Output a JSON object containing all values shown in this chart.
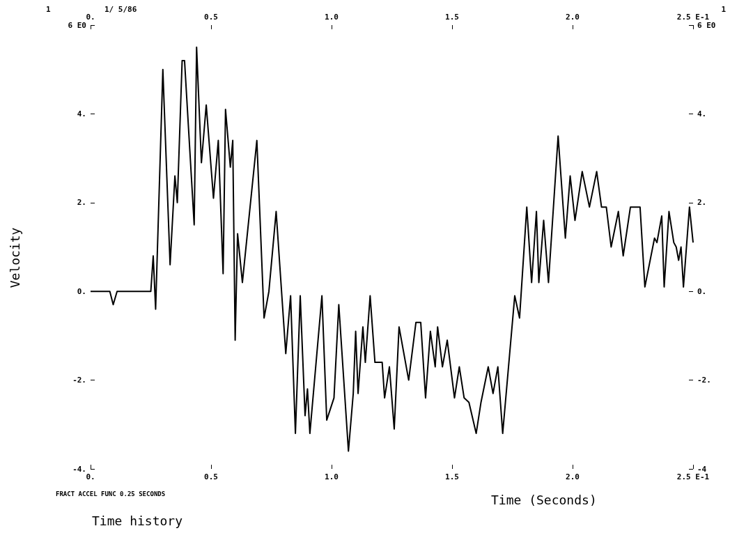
{
  "chart_data": {
    "type": "line",
    "title": "Time history",
    "xlabel": "Time (Seconds)",
    "ylabel": "Velocity",
    "annotations": [
      "1",
      "1/ 5/86",
      "1",
      "FRACT ACCEL FUNC 0.25 SECONDS"
    ],
    "series": [
      {
        "color": "#000000",
        "x": [
          0,
          0.08,
          0.094,
          0.11,
          0.25,
          0.26,
          0.27,
          0.3,
          0.33,
          0.35,
          0.36,
          0.38,
          0.39,
          0.43,
          0.44,
          0.46,
          0.48,
          0.51,
          0.53,
          0.55,
          0.56,
          0.58,
          0.59,
          0.6,
          0.61,
          0.63,
          0.69,
          0.72,
          0.74,
          0.77,
          0.81,
          0.83,
          0.85,
          0.87,
          0.89,
          0.9,
          0.91,
          0.96,
          0.98,
          1.01,
          1.03,
          1.07,
          1.09,
          1.1,
          1.11,
          1.13,
          1.14,
          1.16,
          1.18,
          1.21,
          1.22,
          1.24,
          1.26,
          1.28,
          1.32,
          1.35,
          1.37,
          1.39,
          1.41,
          1.43,
          1.44,
          1.46,
          1.48,
          1.51,
          1.53,
          1.55,
          1.57,
          1.6,
          1.62,
          1.65,
          1.67,
          1.69,
          1.71,
          1.76,
          1.78,
          1.81,
          1.83,
          1.85,
          1.86,
          1.88,
          1.9,
          1.94,
          1.97,
          1.99,
          2.01,
          2.04,
          2.07,
          2.1,
          2.12,
          2.14,
          2.16,
          2.19,
          2.21,
          2.24,
          2.28,
          2.3,
          2.34,
          2.35,
          2.37,
          2.38,
          2.4,
          2.42,
          2.43,
          2.44,
          2.45,
          2.46,
          2.485,
          2.5
        ],
        "values": [
          0,
          0,
          -0.3,
          0,
          0,
          0.8,
          -0.4,
          5.0,
          0.6,
          2.6,
          2.0,
          5.2,
          5.2,
          1.5,
          5.5,
          2.9,
          4.2,
          2.1,
          3.4,
          0.4,
          4.1,
          2.8,
          3.4,
          -1.1,
          1.3,
          0.2,
          3.4,
          -0.6,
          0,
          1.8,
          -1.4,
          -0.1,
          -3.2,
          -0.1,
          -2.8,
          -2.2,
          -3.2,
          -0.1,
          -2.9,
          -2.4,
          -0.3,
          -3.6,
          -2.3,
          -0.9,
          -2.3,
          -0.8,
          -1.6,
          -0.1,
          -1.6,
          -1.6,
          -2.4,
          -1.7,
          -3.1,
          -0.8,
          -2.0,
          -0.7,
          -0.7,
          -2.4,
          -0.9,
          -1.7,
          -0.8,
          -1.7,
          -1.1,
          -2.4,
          -1.7,
          -2.4,
          -2.5,
          -3.2,
          -2.5,
          -1.7,
          -2.3,
          -1.7,
          -3.2,
          -0.1,
          -0.6,
          1.9,
          0.2,
          1.8,
          0.2,
          1.6,
          0.2,
          3.5,
          1.2,
          2.6,
          1.6,
          2.7,
          1.9,
          2.7,
          1.9,
          1.9,
          1.0,
          1.8,
          0.8,
          1.9,
          1.9,
          0.1,
          1.2,
          1.1,
          1.7,
          0.1,
          1.8,
          1.1,
          1.0,
          0.7,
          1.0,
          0.1,
          1.9,
          1.1
        ]
      }
    ],
    "xlim": [
      0,
      2.5
    ],
    "xticks": [
      {
        "value": 0,
        "label": "0."
      },
      {
        "value": 0.5,
        "label": "0.5"
      },
      {
        "value": 1,
        "label": "1.0"
      },
      {
        "value": 1.5,
        "label": "1.5"
      },
      {
        "value": 2,
        "label": "2.0"
      },
      {
        "value": 2.5,
        "label": "2.5 E-1"
      }
    ],
    "x2lim": [
      0,
      2.5
    ],
    "x2ticks": [
      {
        "value": 0,
        "label": "0."
      },
      {
        "value": 0.5,
        "label": "0.5"
      },
      {
        "value": 1,
        "label": "1.0"
      },
      {
        "value": 1.5,
        "label": "1.5"
      },
      {
        "value": 2,
        "label": "2.0"
      },
      {
        "value": 2.5,
        "label": "2.5 E-1"
      }
    ],
    "ylim": [
      -4,
      6
    ],
    "yticks": [
      {
        "value": -4,
        "label": "-4."
      },
      {
        "value": -2,
        "label": "-2."
      },
      {
        "value": 0,
        "label": "0."
      },
      {
        "value": 2,
        "label": "2."
      },
      {
        "value": 4,
        "label": "4."
      },
      {
        "value": 6,
        "label": "6 E0"
      }
    ],
    "y2lim": [
      -4,
      6
    ],
    "y2ticks": [
      {
        "value": -4,
        "label": "-4"
      },
      {
        "value": -2,
        "label": "-2."
      },
      {
        "value": 0,
        "label": "0."
      },
      {
        "value": 2,
        "label": "2."
      },
      {
        "value": 4,
        "label": "4."
      },
      {
        "value": 6,
        "label": "6 E0"
      }
    ],
    "grid": false,
    "marker": "none",
    "line_style": "solid"
  }
}
